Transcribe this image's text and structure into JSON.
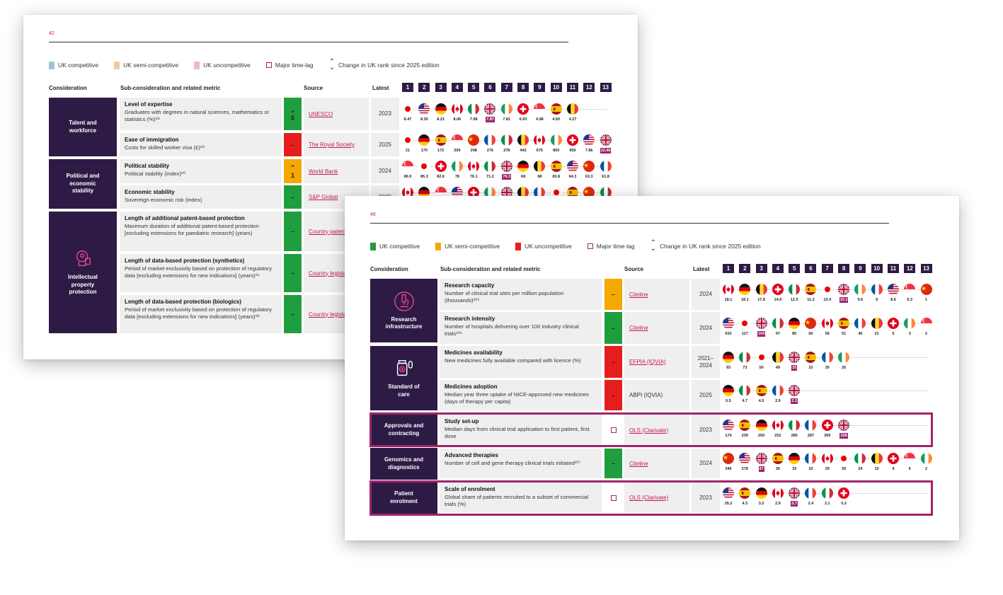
{
  "page1": {
    "page_number": "42",
    "legend": {
      "competitive": "UK competitive",
      "semi": "UK semi-competitive",
      "uncompetitive": "UK uncompetitive",
      "timelag": "Major time-lag",
      "change": "Change in UK rank since 2025 edition"
    },
    "legend_colors": {
      "competitive": "#9cc7cc",
      "semi": "#f5c9a0",
      "uncompetitive": "#f0b6d2"
    },
    "headers": {
      "consideration": "Consideration",
      "sub": "Sub-consideration and related metric",
      "source": "Source",
      "latest": "Latest"
    },
    "ranks": [
      "1",
      "2",
      "3",
      "4",
      "5",
      "6",
      "7",
      "8",
      "9",
      "10",
      "11",
      "12",
      "13"
    ],
    "groups": [
      {
        "label": "Talent and workforce"
      },
      {
        "label": "Political and economic stability"
      },
      {
        "label": "Intellectual property protection",
        "icon": "brain-icon"
      }
    ],
    "rows": [
      {
        "title": "Level of expertise",
        "desc": "Graduates with degrees in natural sciences, mathematics or statistics (%)⁸⁸",
        "status": "green",
        "change": "5",
        "change_dir": "down",
        "source": "UNESCO",
        "latest": "2023",
        "flags": [
          {
            "c": "japan",
            "v": "8.47"
          },
          {
            "c": "us",
            "v": "8.30"
          },
          {
            "c": "germany",
            "v": "8.21"
          },
          {
            "c": "canada",
            "v": "8.06"
          },
          {
            "c": "italy",
            "v": "7.98"
          },
          {
            "c": "uk",
            "v": "7.87",
            "uk": true
          },
          {
            "c": "ireland",
            "v": "7.81"
          },
          {
            "c": "switzerland",
            "v": "6.93"
          },
          {
            "c": "singapore",
            "v": "4.98"
          },
          {
            "c": "spain",
            "v": "4.50"
          },
          {
            "c": "belgium",
            "v": "4.27"
          }
        ]
      },
      {
        "title": "Ease of immigration",
        "desc": "Costs for skilled worker visa (£)⁸⁹",
        "status": "red",
        "change": "–",
        "source": "The Royal Society",
        "latest": "2025",
        "flags": [
          {
            "c": "japan",
            "v": "21"
          },
          {
            "c": "germany",
            "v": "170"
          },
          {
            "c": "spain",
            "v": "172"
          },
          {
            "c": "singapore",
            "v": "209"
          },
          {
            "c": "china",
            "v": "248"
          },
          {
            "c": "france",
            "v": "276"
          },
          {
            "c": "italy",
            "v": "278"
          },
          {
            "c": "belgium",
            "v": "442"
          },
          {
            "c": "canada",
            "v": "675"
          },
          {
            "c": "ireland",
            "v": "850"
          },
          {
            "c": "switzerland",
            "v": "956"
          },
          {
            "c": "us",
            "v": "7.8k"
          },
          {
            "c": "uk",
            "v": "12.4k",
            "uk": true
          }
        ]
      },
      {
        "title": "Political stability",
        "desc": "Political stability (index)⁹⁰",
        "status": "amber",
        "change": "1",
        "change_dir": "up",
        "source": "World Bank",
        "latest": "2024",
        "flags": [
          {
            "c": "singapore",
            "v": "86.9"
          },
          {
            "c": "japan",
            "v": "85.3"
          },
          {
            "c": "switzerland",
            "v": "82.6"
          },
          {
            "c": "ireland",
            "v": "78"
          },
          {
            "c": "canada",
            "v": "76.1"
          },
          {
            "c": "italy",
            "v": "71.2"
          },
          {
            "c": "uk",
            "v": "70.3",
            "uk": true
          },
          {
            "c": "germany",
            "v": "68"
          },
          {
            "c": "belgium",
            "v": "68"
          },
          {
            "c": "spain",
            "v": "65.8"
          },
          {
            "c": "us",
            "v": "64.3"
          },
          {
            "c": "china",
            "v": "63.3"
          },
          {
            "c": "france",
            "v": "61.8"
          }
        ]
      },
      {
        "title": "Economic stability",
        "desc": "Sovereign economic risk (index)",
        "status": "green",
        "change": "–",
        "source": "S&P Global",
        "latest": "2025",
        "flags": [
          {
            "c": "canada",
            "v": ""
          },
          {
            "c": "germany",
            "v": ""
          },
          {
            "c": "singapore",
            "v": ""
          },
          {
            "c": "us",
            "v": ""
          },
          {
            "c": "switzerland",
            "v": ""
          },
          {
            "c": "ireland",
            "v": ""
          },
          {
            "c": "uk",
            "v": ""
          },
          {
            "c": "belgium",
            "v": ""
          },
          {
            "c": "france",
            "v": ""
          },
          {
            "c": "japan",
            "v": ""
          },
          {
            "c": "spain",
            "v": ""
          },
          {
            "c": "china",
            "v": ""
          },
          {
            "c": "italy",
            "v": ""
          }
        ]
      },
      {
        "title": "Length of additional patent-based protection",
        "desc": "Maximum duration of additional patent-based protection [excluding extensions for paediatric research] (years)",
        "status": "green",
        "change": "–",
        "source": "Country patent office",
        "latest": ""
      },
      {
        "title": "Length of data-based protection (synthetics)",
        "desc": "Period of market exclusivity based on protection of regulatory data [excluding extensions for new indications] (years)⁹¹",
        "status": "green",
        "change": "–",
        "source": "Country legislation",
        "latest": ""
      },
      {
        "title": "Length of data-based protection (biologics)",
        "desc": "Period of market exclusivity based on protection of regulatory data [excluding extensions for new indications] (years)⁹²",
        "status": "green",
        "change": "–",
        "source": "Country legislation",
        "latest": ""
      }
    ]
  },
  "page2": {
    "page_number": "48",
    "legend": {
      "competitive": "UK competitive",
      "semi": "UK semi-competitive",
      "uncompetitive": "UK uncompetitive",
      "timelag": "Major time-lag",
      "change": "Change in UK rank since 2025 edition"
    },
    "legend_colors": {
      "competitive": "#1f9e3e",
      "semi": "#f5a800",
      "uncompetitive": "#e61e1e"
    },
    "headers": {
      "consideration": "Consideration",
      "sub": "Sub-consideration and related metric",
      "source": "Source",
      "latest": "Latest"
    },
    "ranks": [
      "1",
      "2",
      "3",
      "4",
      "5",
      "6",
      "7",
      "8",
      "9",
      "10",
      "11",
      "12",
      "13"
    ],
    "groups": [
      {
        "label": "Research infrastructure",
        "icon": "microscope-icon"
      },
      {
        "label": "Standard of care",
        "icon": "medicine-icon"
      },
      {
        "label": "Approvals and contracting"
      },
      {
        "label": "Genomics and diagnostics"
      },
      {
        "label": "Patient enrolment"
      }
    ],
    "rows": [
      {
        "title": "Research capacity",
        "desc": "Number of clinical trial sites per million population (thousands)¹⁰⁵",
        "status": "amber",
        "change": "–",
        "source": "Citeline",
        "latest": "2024",
        "flags": [
          {
            "c": "canada",
            "v": "18.1"
          },
          {
            "c": "germany",
            "v": "18.1"
          },
          {
            "c": "belgium",
            "v": "17.8"
          },
          {
            "c": "switzerland",
            "v": "14.9"
          },
          {
            "c": "italy",
            "v": "12.5"
          },
          {
            "c": "spain",
            "v": "11.2"
          },
          {
            "c": "japan",
            "v": "10.4"
          },
          {
            "c": "uk",
            "v": "10.1",
            "uk": true
          },
          {
            "c": "ireland",
            "v": "9.6"
          },
          {
            "c": "france",
            "v": "9"
          },
          {
            "c": "us",
            "v": "8.6"
          },
          {
            "c": "singapore",
            "v": "6.3"
          },
          {
            "c": "china",
            "v": "1"
          }
        ]
      },
      {
        "title": "Research intensity",
        "desc": "Number of hospitals delivering over 100 industry clinical trials¹⁰⁶",
        "status": "green",
        "change": "–",
        "source": "Citeline",
        "latest": "2024",
        "flags": [
          {
            "c": "us",
            "v": "933"
          },
          {
            "c": "japan",
            "v": "127"
          },
          {
            "c": "uk",
            "v": "104",
            "uk": true
          },
          {
            "c": "italy",
            "v": "97"
          },
          {
            "c": "germany",
            "v": "85"
          },
          {
            "c": "china",
            "v": "60"
          },
          {
            "c": "canada",
            "v": "56"
          },
          {
            "c": "spain",
            "v": "51"
          },
          {
            "c": "france",
            "v": "40"
          },
          {
            "c": "belgium",
            "v": "21"
          },
          {
            "c": "switzerland",
            "v": "5"
          },
          {
            "c": "ireland",
            "v": "3"
          },
          {
            "c": "singapore",
            "v": "2"
          }
        ]
      },
      {
        "title": "Medicines availability",
        "desc": "New medicines fully available compared with licence (%)",
        "status": "red",
        "change": "–",
        "source": "EFPIA (IQVIA)",
        "latest": "2021–2024",
        "flags": [
          {
            "c": "germany",
            "v": "93"
          },
          {
            "c": "italy",
            "v": "73"
          },
          {
            "c": "japan",
            "v": "50"
          },
          {
            "c": "belgium",
            "v": "49"
          },
          {
            "c": "uk",
            "v": "33",
            "uk": true
          },
          {
            "c": "spain",
            "v": "33"
          },
          {
            "c": "france",
            "v": "30"
          },
          {
            "c": "ireland",
            "v": "26"
          }
        ]
      },
      {
        "title": "Medicines adoption",
        "desc": "Median year three uptake of NICE-approved new medicines (days of therapy per capita)",
        "status": "red",
        "change": "–",
        "source": "ABPI (IQVIA)",
        "source_plain": true,
        "latest": "2025",
        "flags": [
          {
            "c": "germany",
            "v": "5.5"
          },
          {
            "c": "italy",
            "v": "4.7"
          },
          {
            "c": "spain",
            "v": "4.5"
          },
          {
            "c": "france",
            "v": "2.9"
          },
          {
            "c": "uk",
            "v": "2.3",
            "uk": true
          }
        ]
      },
      {
        "title": "Study set-up",
        "desc": "Median days from clinical trial application to first patient, first dose",
        "status": "timelag",
        "change": "",
        "source": "OLS (Clarivate)",
        "latest": "2023",
        "flags": [
          {
            "c": "us",
            "v": "174"
          },
          {
            "c": "spain",
            "v": "239"
          },
          {
            "c": "germany",
            "v": "250"
          },
          {
            "c": "canada",
            "v": "252"
          },
          {
            "c": "italy",
            "v": "285"
          },
          {
            "c": "france",
            "v": "287"
          },
          {
            "c": "switzerland",
            "v": "300"
          },
          {
            "c": "uk",
            "v": "338",
            "uk": true
          }
        ]
      },
      {
        "title": "Advanced therapies",
        "desc": "Number of cell and gene therapy clinical trials initiated¹⁰⁷",
        "status": "green",
        "change": "–",
        "source": "Citeline",
        "latest": "2024",
        "flags": [
          {
            "c": "china",
            "v": "346"
          },
          {
            "c": "us",
            "v": "278"
          },
          {
            "c": "uk",
            "v": "47",
            "uk": true
          },
          {
            "c": "spain",
            "v": "36"
          },
          {
            "c": "germany",
            "v": "33"
          },
          {
            "c": "france",
            "v": "32"
          },
          {
            "c": "canada",
            "v": "29"
          },
          {
            "c": "japan",
            "v": "26"
          },
          {
            "c": "italy",
            "v": "24"
          },
          {
            "c": "belgium",
            "v": "10"
          },
          {
            "c": "switzerland",
            "v": "9"
          },
          {
            "c": "singapore",
            "v": "6"
          },
          {
            "c": "ireland",
            "v": "2"
          }
        ]
      },
      {
        "title": "Scale of enrolment",
        "desc": "Global share of patients recruited to a subset of commercial trials (%)",
        "status": "timelag",
        "change": "",
        "source": "OLS (Clarivate)",
        "latest": "2023",
        "flags": [
          {
            "c": "us",
            "v": "35.2"
          },
          {
            "c": "spain",
            "v": "4.3"
          },
          {
            "c": "germany",
            "v": "3.2"
          },
          {
            "c": "canada",
            "v": "2.9"
          },
          {
            "c": "uk",
            "v": "2.7",
            "uk": true
          },
          {
            "c": "france",
            "v": "2.4"
          },
          {
            "c": "italy",
            "v": "2.1"
          },
          {
            "c": "switzerland",
            "v": "0.2"
          }
        ]
      }
    ]
  }
}
